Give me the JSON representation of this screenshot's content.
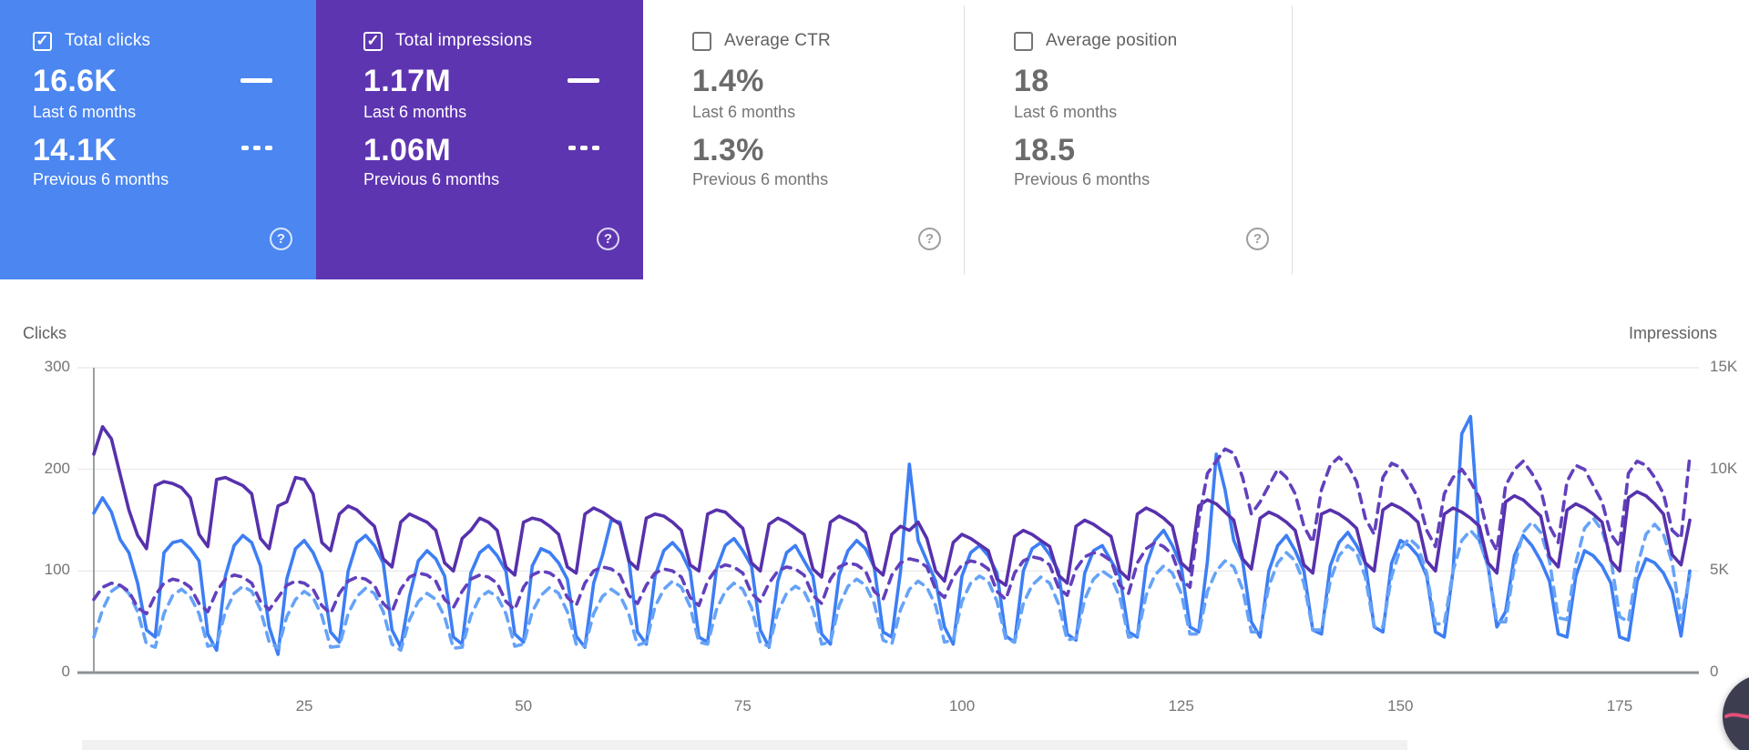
{
  "cards": [
    {
      "title": "Total clicks",
      "checked": true,
      "bg": "#4b86f1",
      "value_current": "16.6K",
      "label_current": "Last 6 months",
      "value_previous": "14.1K",
      "label_previous": "Previous 6 months",
      "help_glyph": "?",
      "check_glyph": "✓"
    },
    {
      "title": "Total impressions",
      "checked": true,
      "bg": "#5e35b1",
      "value_current": "1.17M",
      "label_current": "Last 6 months",
      "value_previous": "1.06M",
      "label_previous": "Previous 6 months",
      "help_glyph": "?",
      "check_glyph": "✓"
    },
    {
      "title": "Average CTR",
      "checked": false,
      "bg": "#ffffff",
      "value_current": "1.4%",
      "label_current": "Last 6 months",
      "value_previous": "1.3%",
      "label_previous": "Previous 6 months",
      "help_glyph": "?",
      "check_glyph": ""
    },
    {
      "title": "Average position",
      "checked": false,
      "bg": "#ffffff",
      "value_current": "18",
      "label_current": "Last 6 months",
      "value_previous": "18.5",
      "label_previous": "Previous 6 months",
      "help_glyph": "?",
      "check_glyph": ""
    }
  ],
  "chart_data": {
    "type": "line",
    "left_axis": {
      "label": "Clicks",
      "range": [
        0,
        300
      ],
      "tick_values": [
        300,
        200,
        100,
        0
      ],
      "tick_labels": [
        "300",
        "200",
        "100",
        "0"
      ]
    },
    "right_axis": {
      "label": "Impressions",
      "range": [
        0,
        15000
      ],
      "tick_values": [
        15000,
        10000,
        5000,
        0
      ],
      "tick_labels": [
        "15K",
        "10K",
        "5K",
        "0"
      ]
    },
    "x_ticks": [
      25,
      50,
      75,
      100,
      125,
      150,
      175
    ],
    "x_range": [
      1,
      183
    ],
    "grid": true,
    "colors": {
      "clicks": "#3d7ef4",
      "clicks_prev": "#66a3f7",
      "impressions": "#5731ac",
      "impressions_prev": "#6240bd"
    },
    "series": [
      {
        "name": "Clicks — Last 6 months",
        "axis": "left",
        "style": "solid",
        "color": "#3d7ef4",
        "values": [
          157,
          172,
          158,
          131,
          118,
          88,
          42,
          35,
          118,
          128,
          130,
          122,
          110,
          38,
          22,
          95,
          125,
          135,
          128,
          105,
          45,
          18,
          92,
          122,
          130,
          118,
          98,
          40,
          30,
          100,
          128,
          135,
          125,
          108,
          42,
          25,
          75,
          110,
          120,
          112,
          95,
          35,
          28,
          98,
          118,
          125,
          115,
          100,
          38,
          30,
          105,
          122,
          118,
          108,
          92,
          36,
          25,
          88,
          115,
          150,
          148,
          112,
          40,
          28,
          95,
          120,
          128,
          118,
          100,
          35,
          30,
          102,
          125,
          132,
          120,
          105,
          42,
          25,
          90,
          118,
          125,
          110,
          95,
          38,
          28,
          96,
          120,
          130,
          122,
          104,
          40,
          35,
          100,
          205,
          130,
          110,
          90,
          45,
          28,
          95,
          118,
          125,
          115,
          98,
          36,
          30,
          100,
          122,
          128,
          116,
          100,
          38,
          32,
          98,
          120,
          125,
          110,
          95,
          40,
          35,
          105,
          130,
          140,
          125,
          105,
          45,
          40,
          110,
          215,
          180,
          130,
          110,
          50,
          35,
          100,
          125,
          135,
          120,
          100,
          42,
          38,
          105,
          128,
          138,
          125,
          108,
          45,
          40,
          108,
          130,
          125,
          115,
          95,
          40,
          35,
          100,
          235,
          252,
          130,
          105,
          45,
          60,
          115,
          135,
          125,
          110,
          90,
          38,
          35,
          95,
          120,
          115,
          105,
          88,
          35,
          32,
          90,
          112,
          108,
          98,
          80,
          36,
          100
        ]
      },
      {
        "name": "Clicks — Previous 6 months",
        "axis": "left",
        "style": "dashed",
        "color": "#66a3f7",
        "values": [
          35,
          62,
          80,
          86,
          78,
          60,
          28,
          25,
          58,
          76,
          82,
          75,
          58,
          26,
          28,
          60,
          78,
          85,
          80,
          62,
          30,
          24,
          55,
          72,
          80,
          74,
          56,
          25,
          26,
          58,
          75,
          83,
          78,
          60,
          28,
          22,
          52,
          70,
          78,
          72,
          55,
          24,
          25,
          56,
          74,
          80,
          75,
          58,
          26,
          28,
          60,
          76,
          84,
          78,
          60,
          28,
          26,
          58,
          75,
          82,
          76,
          58,
          27,
          30,
          65,
          82,
          90,
          84,
          65,
          30,
          28,
          62,
          80,
          88,
          82,
          64,
          29,
          26,
          60,
          78,
          85,
          80,
          62,
          28,
          30,
          66,
          85,
          92,
          86,
          68,
          32,
          28,
          62,
          82,
          90,
          84,
          66,
          30,
          32,
          70,
          88,
          95,
          90,
          70,
          33,
          30,
          68,
          86,
          94,
          88,
          68,
          32,
          34,
          72,
          92,
          100,
          94,
          74,
          35,
          36,
          76,
          96,
          105,
          98,
          78,
          38,
          38,
          80,
          100,
          110,
          104,
          82,
          40,
          40,
          85,
          108,
          118,
          110,
          88,
          42,
          42,
          90,
          115,
          125,
          118,
          94,
          45,
          45,
          95,
          122,
          132,
          124,
          98,
          48,
          48,
          100,
          130,
          140,
          130,
          104,
          50,
          50,
          105,
          138,
          148,
          138,
          110,
          54,
          52,
          108,
          142,
          152,
          140,
          112,
          55,
          50,
          104,
          136,
          146,
          136,
          108,
          52,
          95
        ]
      },
      {
        "name": "Impressions — Last 6 months",
        "axis": "right",
        "style": "solid",
        "color": "#5731ac",
        "values": [
          10750,
          12100,
          11500,
          9750,
          8000,
          6750,
          6100,
          9200,
          9400,
          9300,
          9100,
          8600,
          6800,
          6200,
          9500,
          9600,
          9400,
          9200,
          8800,
          6600,
          6100,
          8200,
          8400,
          9600,
          9500,
          8800,
          6400,
          6000,
          7800,
          8200,
          8000,
          7600,
          7200,
          5600,
          5200,
          7400,
          7800,
          7600,
          7400,
          7000,
          5400,
          5000,
          6600,
          7000,
          7600,
          7400,
          7000,
          5200,
          4800,
          7400,
          7600,
          7500,
          7200,
          6800,
          5200,
          4900,
          7800,
          8100,
          7900,
          7600,
          7300,
          5500,
          5100,
          7600,
          7800,
          7700,
          7400,
          7000,
          5300,
          5000,
          7800,
          8000,
          7900,
          7500,
          7100,
          5400,
          5000,
          7300,
          7600,
          7400,
          7100,
          6800,
          5100,
          4700,
          7400,
          7700,
          7500,
          7300,
          6900,
          5200,
          4800,
          6800,
          7200,
          7000,
          7400,
          6600,
          5000,
          4500,
          6400,
          6800,
          6600,
          6300,
          6000,
          4600,
          4300,
          6700,
          7000,
          6800,
          6500,
          6200,
          4800,
          4400,
          7200,
          7500,
          7300,
          7000,
          6700,
          5000,
          4600,
          7800,
          8100,
          7900,
          7600,
          7200,
          5400,
          5000,
          8200,
          8500,
          8300,
          7900,
          7500,
          5600,
          5100,
          7600,
          7900,
          7700,
          7400,
          7000,
          5300,
          4900,
          7800,
          8000,
          7800,
          7500,
          7100,
          5400,
          5000,
          8000,
          8300,
          8100,
          7800,
          7400,
          5500,
          5000,
          7800,
          8100,
          7900,
          7600,
          7200,
          5400,
          4900,
          8400,
          8700,
          8500,
          8100,
          7700,
          5700,
          5200,
          8000,
          8300,
          8100,
          7800,
          7400,
          5500,
          5000,
          8600,
          8900,
          8700,
          8300,
          7800,
          5800,
          5300,
          7500
        ]
      },
      {
        "name": "Impressions — Previous 6 months",
        "axis": "right",
        "style": "dashed",
        "color": "#6240bd",
        "values": [
          3600,
          4200,
          4400,
          4300,
          4000,
          3200,
          2900,
          3800,
          4400,
          4600,
          4500,
          4200,
          3400,
          3000,
          4000,
          4600,
          4800,
          4700,
          4400,
          3500,
          3100,
          3700,
          4300,
          4500,
          4400,
          4100,
          3300,
          2900,
          3900,
          4500,
          4700,
          4600,
          4300,
          3400,
          3000,
          4100,
          4700,
          4900,
          4800,
          4500,
          3600,
          3200,
          4000,
          4600,
          4800,
          4700,
          4400,
          3500,
          3100,
          4200,
          4800,
          5000,
          4900,
          4600,
          3700,
          3300,
          4400,
          5000,
          5200,
          5100,
          4800,
          3800,
          3400,
          4300,
          4900,
          5100,
          5000,
          4700,
          3700,
          3300,
          4500,
          5100,
          5300,
          5200,
          4900,
          3900,
          3500,
          4400,
          5000,
          5200,
          5100,
          4800,
          3800,
          3400,
          4600,
          5200,
          5400,
          5300,
          5000,
          4000,
          3600,
          4800,
          5400,
          5600,
          5500,
          5200,
          4100,
          3700,
          4700,
          5300,
          5500,
          5400,
          5100,
          4000,
          3600,
          4900,
          5500,
          5700,
          5600,
          5300,
          4200,
          3800,
          5100,
          5700,
          5900,
          5800,
          5500,
          4300,
          3900,
          5400,
          6100,
          6400,
          6200,
          5800,
          4600,
          4200,
          7500,
          9800,
          10400,
          11000,
          10800,
          9600,
          7800,
          8400,
          9200,
          10000,
          9600,
          8800,
          7200,
          6400,
          9000,
          10200,
          10600,
          10200,
          9400,
          7600,
          6800,
          9600,
          10300,
          10100,
          9400,
          8600,
          7000,
          6200,
          8800,
          9600,
          10000,
          9400,
          8600,
          6800,
          6000,
          9200,
          10000,
          10400,
          9800,
          9000,
          7200,
          6400,
          9400,
          10200,
          10000,
          9200,
          8400,
          6800,
          6200,
          9800,
          10400,
          10200,
          9600,
          8800,
          7000,
          6600,
          10650
        ]
      }
    ]
  },
  "overlay": {
    "bubble_name": "recording-bubble"
  }
}
